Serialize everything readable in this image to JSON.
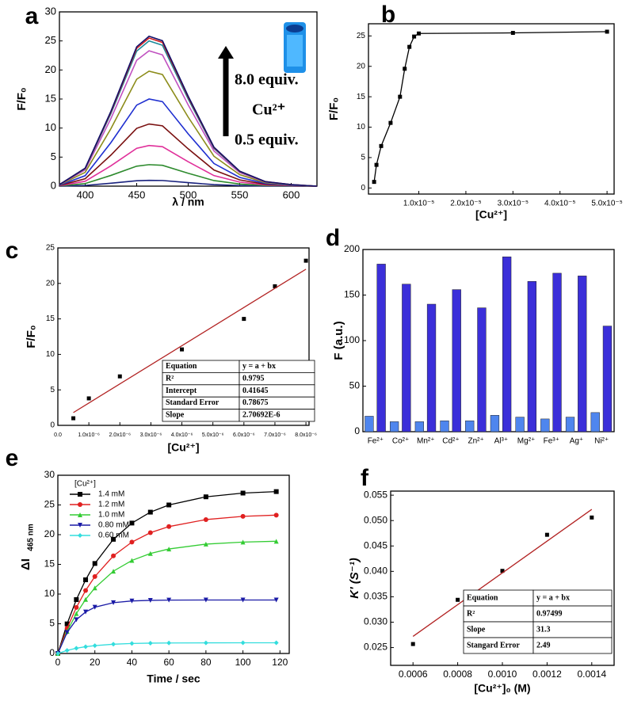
{
  "chart_data": [
    {
      "type": "line",
      "panel_label": "a",
      "x_label": "λ / nm",
      "y_label": "F/F₀",
      "xlim": [
        375,
        625
      ],
      "xticks": [
        400,
        450,
        500,
        550,
        600
      ],
      "ylim": [
        0,
        30
      ],
      "yticks": [
        0,
        5,
        10,
        15,
        20,
        25,
        30
      ],
      "x": [
        375,
        400,
        425,
        450,
        462,
        475,
        500,
        525,
        550,
        575,
        600,
        625
      ],
      "series": [
        {
          "color": "#1a237e",
          "values": [
            0.01,
            0.12,
            0.5,
            0.93,
            1,
            0.97,
            0.6,
            0.26,
            0.1,
            0.03,
            0.01,
            0
          ]
        },
        {
          "color": "#2e8b2e",
          "values": [
            0.04,
            0.44,
            1.85,
            3.44,
            3.7,
            3.59,
            2.22,
            0.96,
            0.37,
            0.11,
            0.04,
            0
          ]
        },
        {
          "color": "#e0309a",
          "values": [
            0.07,
            0.84,
            3.5,
            6.51,
            7,
            6.79,
            4.2,
            1.82,
            0.7,
            0.21,
            0.07,
            0
          ]
        },
        {
          "color": "#7a1010",
          "values": [
            0.11,
            1.28,
            5.35,
            9.95,
            10.7,
            10.38,
            6.42,
            2.78,
            1.07,
            0.32,
            0.11,
            0
          ]
        },
        {
          "color": "#1f2fd0",
          "values": [
            0.15,
            1.8,
            7.5,
            13.95,
            15,
            14.55,
            9,
            3.9,
            1.5,
            0.45,
            0.15,
            0
          ]
        },
        {
          "color": "#8c8c1a",
          "values": [
            0.2,
            2.38,
            9.9,
            18.41,
            19.8,
            19.21,
            11.88,
            5.15,
            1.98,
            0.59,
            0.2,
            0
          ]
        },
        {
          "color": "#c050c0",
          "values": [
            0.23,
            2.8,
            11.65,
            21.67,
            23.3,
            22.6,
            13.98,
            6.06,
            2.33,
            0.7,
            0.23,
            0
          ]
        },
        {
          "color": "#1a8a9a",
          "values": [
            0.25,
            3,
            12.5,
            23.25,
            25,
            24.25,
            15,
            6.5,
            2.5,
            0.75,
            0.25,
            0
          ]
        },
        {
          "color": "#d02020",
          "values": [
            0.26,
            3.06,
            12.75,
            23.72,
            25.5,
            24.74,
            15.3,
            6.63,
            2.55,
            0.77,
            0.26,
            0
          ]
        },
        {
          "color": "#10106a",
          "values": [
            0.26,
            3.1,
            12.9,
            23.99,
            25.8,
            25.03,
            15.48,
            6.71,
            2.58,
            0.77,
            0.26,
            0
          ]
        }
      ],
      "annotations": [
        "8.0 equiv.",
        "Cu²⁺",
        "0.5 equiv."
      ]
    },
    {
      "type": "line",
      "panel_label": "b",
      "x_label": "[Cu²⁺]",
      "y_label": "F/F₀",
      "xlim": [
        -7e-07,
        5.15e-05
      ],
      "xticks": [
        {
          "value": 1e-05,
          "label": "1.0x10⁻⁵"
        },
        {
          "value": 2e-05,
          "label": "2.0x10⁻⁵"
        },
        {
          "value": 3e-05,
          "label": "3.0x10⁻⁵"
        },
        {
          "value": 4e-05,
          "label": "4.0x10⁻⁵"
        },
        {
          "value": 5e-05,
          "label": "5.0x10⁻⁵"
        }
      ],
      "ylim": [
        -1,
        27
      ],
      "yticks": [
        0,
        5,
        10,
        15,
        20,
        25
      ],
      "x": [
        5e-07,
        1e-06,
        2e-06,
        4e-06,
        6e-06,
        7e-06,
        8e-06,
        9e-06,
        1e-05,
        3e-05,
        5e-05
      ],
      "series": [
        {
          "color": "#000000",
          "marker": "square",
          "values": [
            1,
            3.8,
            6.9,
            10.7,
            15,
            19.6,
            23.2,
            24.9,
            25.4,
            25.5,
            25.7
          ]
        }
      ]
    },
    {
      "type": "scatter",
      "panel_label": "c",
      "x_label": "[Cu²⁺]",
      "y_label": "F/F₀",
      "xlim": [
        0,
        8.1e-06
      ],
      "xticks": [
        {
          "value": 0,
          "label": "0.0"
        },
        {
          "value": 1e-06,
          "label": "1.0x10⁻⁶"
        },
        {
          "value": 2e-06,
          "label": "2.0x10⁻⁶"
        },
        {
          "value": 3e-06,
          "label": "3.0x10⁻⁶"
        },
        {
          "value": 4e-06,
          "label": "4.0x10⁻⁶"
        },
        {
          "value": 5e-06,
          "label": "5.0x10⁻⁶"
        },
        {
          "value": 6e-06,
          "label": "6.0x10⁻⁶"
        },
        {
          "value": 7e-06,
          "label": "7.0x10⁻⁶"
        },
        {
          "value": 8e-06,
          "label": "8.0x10⁻⁶"
        }
      ],
      "ylim": [
        0,
        25
      ],
      "yticks": [
        0,
        5,
        10,
        15,
        20,
        25
      ],
      "series": [
        {
          "color": "#000000",
          "marker": "square",
          "x": [
            5e-07,
            1e-06,
            2e-06,
            4e-06,
            6e-06,
            7e-06,
            8e-06
          ],
          "values": [
            1.0,
            3.8,
            6.9,
            10.7,
            15.0,
            19.6,
            23.2
          ]
        },
        {
          "color": "#b22222",
          "x": [
            5e-07,
            8e-06
          ],
          "values": [
            1.8,
            22.0
          ]
        }
      ],
      "table": {
        "rows": [
          [
            "Equation",
            "y = a + bx"
          ],
          [
            "R²",
            "0.9795"
          ],
          [
            "Intercept",
            "0.41645"
          ],
          [
            "Standard Error",
            "0.78675"
          ],
          [
            "Slope",
            "2.70692E-6"
          ]
        ]
      }
    },
    {
      "type": "bar",
      "panel_label": "d",
      "y_label": "F (a.u.)",
      "categories": [
        "Fe²⁺",
        "Co²⁺",
        "Mn²⁺",
        "Cd²⁺",
        "Zn²⁺",
        "Al³⁺",
        "Mg²⁺",
        "Fe³⁺",
        "Ag⁺",
        "Ni²⁺"
      ],
      "ylim": [
        0,
        200
      ],
      "yticks": [
        0,
        50,
        100,
        150,
        200
      ],
      "series": [
        {
          "color": "#4f86ee",
          "values": [
            17,
            11,
            11,
            12,
            12,
            18,
            16,
            14,
            16,
            21
          ]
        },
        {
          "color": "#3b2fd9",
          "values": [
            184,
            162,
            140,
            156,
            136,
            192,
            165,
            174,
            171,
            116
          ]
        }
      ]
    },
    {
      "type": "line",
      "panel_label": "e",
      "x_label": "Time / sec",
      "y_label": "ΔI",
      "y_label_subscript": "465 nm",
      "xlim": [
        0,
        125
      ],
      "xticks": [
        0,
        20,
        40,
        60,
        80,
        100,
        120
      ],
      "ylim": [
        0,
        30
      ],
      "yticks": [
        0,
        5,
        10,
        15,
        20,
        25,
        30
      ],
      "legend": "upper left",
      "legend_title": "[Cu²⁺]",
      "x": [
        0,
        5,
        10,
        15,
        20,
        30,
        40,
        50,
        60,
        80,
        100,
        118
      ],
      "series": [
        {
          "name": "1.4 mM",
          "color": "#000000",
          "marker": "square",
          "values": [
            0,
            4.98,
            9.07,
            12.4,
            15.15,
            19.22,
            21.95,
            23.79,
            25.0,
            26.37,
            27.0,
            27.25
          ]
        },
        {
          "name": "1.2 mM",
          "color": "#e02020",
          "marker": "circle",
          "values": [
            0,
            4.25,
            7.75,
            10.6,
            12.95,
            16.43,
            18.75,
            20.33,
            21.36,
            22.54,
            23.08,
            23.29
          ]
        },
        {
          "name": "1.0 mM",
          "color": "#33cc33",
          "marker": "triangle",
          "values": [
            0,
            3.71,
            6.71,
            9.1,
            11.04,
            13.85,
            15.66,
            16.83,
            17.59,
            18.41,
            18.75,
            18.89
          ]
        },
        {
          "name": "0.80 mM",
          "color": "#1a1aa6",
          "marker": "triangle-down",
          "values": [
            0,
            3.54,
            5.69,
            6.99,
            7.78,
            8.55,
            8.84,
            8.94,
            8.98,
            9,
            9,
            9
          ]
        },
        {
          "name": "0.60 mM",
          "color": "#33dddd",
          "marker": "diamond",
          "values": [
            0,
            0.51,
            0.88,
            1.14,
            1.32,
            1.56,
            1.68,
            1.74,
            1.77,
            1.79,
            1.8,
            1.8
          ]
        }
      ]
    },
    {
      "type": "scatter",
      "panel_label": "f",
      "x_label": "[Cu²⁺]₀ (M)",
      "y_label": "K' (S⁻¹)",
      "xlim": [
        0.0005,
        0.0015
      ],
      "xticks": [
        0.0006,
        0.0008,
        {
          "value": 0.001,
          "label": "0.0010"
        },
        0.0012,
        0.0014
      ],
      "ylim": [
        0.0215,
        0.0558
      ],
      "yticks": [
        0.025,
        {
          "value": 0.03,
          "label": "0.030"
        },
        0.035,
        {
          "value": 0.04,
          "label": "0.040"
        },
        0.045,
        {
          "value": 0.05,
          "label": "0.050"
        },
        0.055
      ],
      "series": [
        {
          "color": "#000000",
          "marker": "square",
          "x": [
            0.0006,
            0.0008,
            0.001,
            0.0012,
            0.0014
          ],
          "values": [
            0.0257,
            0.0344,
            0.0401,
            0.0472,
            0.0506
          ]
        },
        {
          "color": "#b22222",
          "x": [
            0.0006,
            0.0014
          ],
          "values": [
            0.0272,
            0.0522
          ]
        }
      ],
      "table": {
        "rows": [
          [
            "Equation",
            "y = a + bx"
          ],
          [
            "R²",
            "0.97499"
          ],
          [
            "Slope",
            "31.3"
          ],
          [
            "Stangard Error",
            "2.49"
          ]
        ]
      }
    }
  ]
}
